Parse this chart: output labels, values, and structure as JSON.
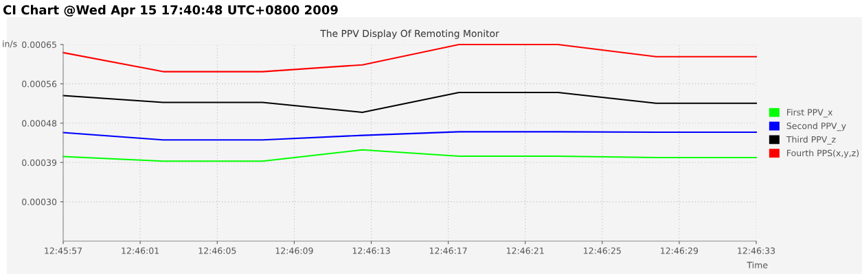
{
  "chart_data": {
    "type": "line",
    "title": "CI Chart @Wed Apr 15 17:40:48 UTC+0800 2009",
    "subtitle": "The PPV Display Of Remoting Monitor",
    "xlabel": "Time",
    "ylabel": "in/s",
    "x": [
      12.765833,
      12.767275,
      12.768711,
      12.77015,
      12.771544,
      12.772972,
      12.774389,
      12.775833
    ],
    "series": [
      {
        "name": "First PPV_x",
        "color": "#00ff00",
        "values": [
          0.000402,
          0.000392,
          0.000392,
          0.000417,
          0.000403,
          0.000403,
          0.0004,
          0.0004
        ]
      },
      {
        "name": "Second PPV_y",
        "color": "#0000ff",
        "values": [
          0.000455,
          0.000439,
          0.000439,
          0.000449,
          0.000457,
          0.000457,
          0.000456,
          0.000456
        ]
      },
      {
        "name": "Third PPV_z",
        "color": "#000000",
        "values": [
          0.000537,
          0.000522,
          0.000522,
          0.0005,
          0.000544,
          0.000544,
          0.00052,
          0.00052
        ]
      },
      {
        "name": "Fourth PPS(x,y,z)",
        "color": "#ff0000",
        "values": [
          0.000632,
          0.00059,
          0.00059,
          0.000605,
          0.00065,
          0.00065,
          0.000623,
          0.000623
        ]
      }
    ],
    "xlim": [
      12.765833,
      12.775833
    ],
    "xticks": [
      {
        "value": 12.765833,
        "label": "12:45:57"
      },
      {
        "value": 12.766944,
        "label": "12:46:01"
      },
      {
        "value": 12.768056,
        "label": "12:46:05"
      },
      {
        "value": 12.769167,
        "label": "12:46:09"
      },
      {
        "value": 12.770278,
        "label": "12:46:13"
      },
      {
        "value": 12.771389,
        "label": "12:46:17"
      },
      {
        "value": 12.7725,
        "label": "12:46:21"
      },
      {
        "value": 12.773611,
        "label": "12:46:25"
      },
      {
        "value": 12.774722,
        "label": "12:46:29"
      },
      {
        "value": 12.775833,
        "label": "12:46:33"
      }
    ],
    "ylim": [
      0.000215,
      0.00065
    ],
    "yticks": [
      {
        "value": 0.000302,
        "label": "0.00030"
      },
      {
        "value": 0.000389,
        "label": "0.00039"
      },
      {
        "value": 0.000476,
        "label": "0.00048"
      },
      {
        "value": 0.000563,
        "label": "0.00056"
      },
      {
        "value": 0.00065,
        "label": "0.00065"
      }
    ],
    "grid": true,
    "legend": "right",
    "marker": "none",
    "line_style": "solid"
  }
}
